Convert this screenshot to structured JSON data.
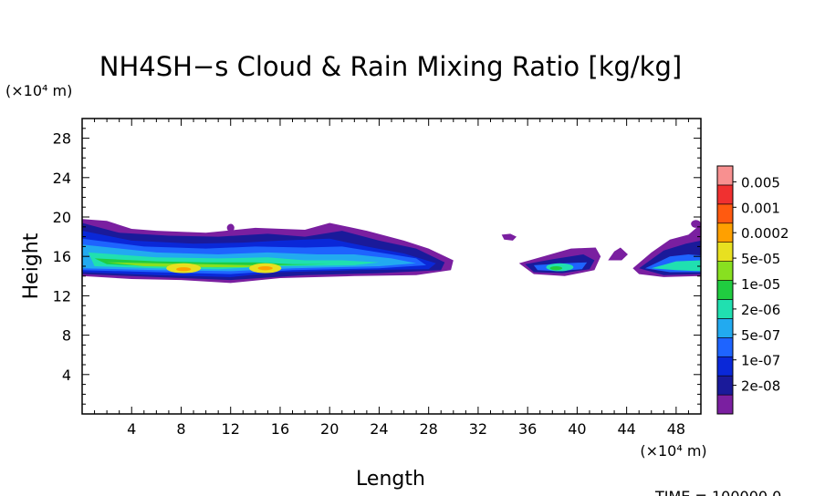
{
  "chart_data": {
    "type": "heatmap",
    "title": "NH4SH−s Cloud & Rain Mixing Ratio [kg/kg]",
    "xlabel": "Length",
    "ylabel": "Height",
    "x_unit": "(×10⁴ m)",
    "y_unit": "(×10⁴ m)",
    "xlim": [
      0,
      50
    ],
    "ylim": [
      0,
      30
    ],
    "x_ticks": [
      4,
      8,
      12,
      16,
      20,
      24,
      28,
      32,
      36,
      40,
      44,
      48
    ],
    "y_ticks": [
      4,
      8,
      12,
      16,
      20,
      24,
      28
    ],
    "time_label": "TIME = 100000.0",
    "colorbar": {
      "levels": [
        "2e-08",
        "1e-07",
        "5e-07",
        "2e-06",
        "1e-05",
        "5e-05",
        "0.0002",
        "0.001",
        "0.005"
      ],
      "colors": [
        "#7a1fa0",
        "#1a1a9a",
        "#0a28d8",
        "#1e64ff",
        "#22aaf0",
        "#20e0b0",
        "#20cc40",
        "#88e020",
        "#e8e020",
        "#ffa000",
        "#ff5a10",
        "#f03030",
        "#f89090"
      ]
    },
    "regions": [
      {
        "x": [
          0,
          30
        ],
        "y": [
          13.5,
          20
        ],
        "max_level": "0.0002"
      },
      {
        "x": [
          34,
          35
        ],
        "y": [
          17.5,
          18.3
        ],
        "max_level": "2e-08"
      },
      {
        "x": [
          35,
          42
        ],
        "y": [
          14,
          17
        ],
        "max_level": "5e-05"
      },
      {
        "x": [
          42.5,
          44
        ],
        "y": [
          15.5,
          17
        ],
        "max_level": "2e-08"
      },
      {
        "x": [
          44,
          50
        ],
        "y": [
          14,
          19.5
        ],
        "max_level": "1e-05"
      }
    ]
  }
}
